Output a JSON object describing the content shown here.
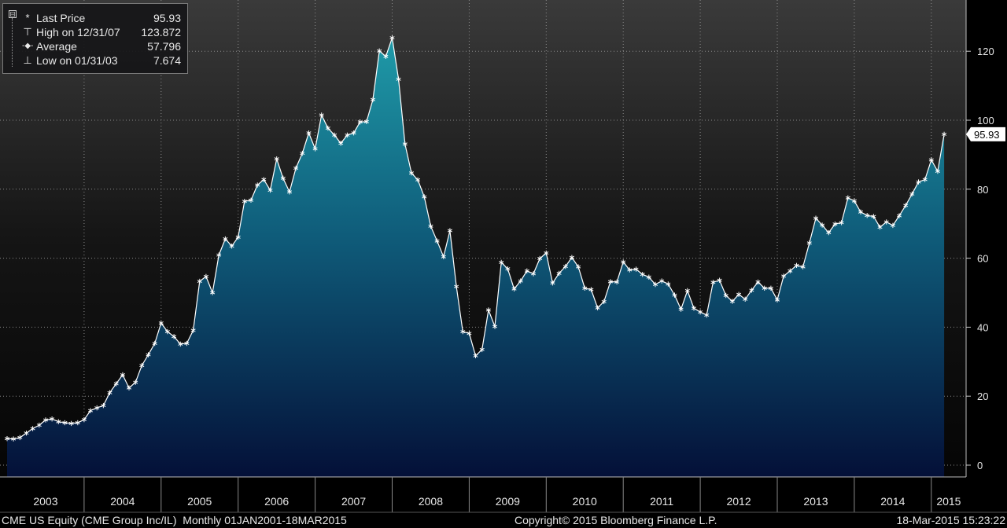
{
  "legend": {
    "collapse_symbol": "⊟",
    "items": [
      {
        "symbol": "*",
        "label": "Last Price",
        "value": "95.93",
        "icon": "asterisk-marker-icon"
      },
      {
        "symbol": "⊤",
        "label": "High on 12/31/07",
        "value": "123.872",
        "icon": "high-marker-icon"
      },
      {
        "symbol": "-◆-",
        "label": "Average",
        "value": "57.796",
        "icon": "average-marker-icon"
      },
      {
        "symbol": "⊥",
        "label": "Low on 01/31/03",
        "value": "7.674",
        "icon": "low-marker-icon"
      }
    ]
  },
  "footer": {
    "security": "CME US Equity (CME Group Inc/IL)  Monthly 01JAN2001-18MAR2015",
    "copyright": "Copyright© 2015 Bloomberg Finance L.P.",
    "timestamp": "18-Mar-2015 15:23:22"
  },
  "colors": {
    "background": "#000000",
    "area_top": "#1f9aa8",
    "area_bottom": "#041038",
    "line": "#ffffff",
    "grid": "#8a8a8a",
    "axis_text": "#e6e6e6",
    "last_price_box": "#ffffff"
  },
  "chart_data": {
    "type": "area",
    "last_price_label": "95.93",
    "xlim": [
      2003.0,
      2015.2
    ],
    "ylim": [
      0,
      130
    ],
    "y_ticks": [
      0,
      20,
      40,
      60,
      80,
      100,
      120
    ],
    "x_tick_labels": [
      "2003",
      "2004",
      "2005",
      "2006",
      "2007",
      "2008",
      "2009",
      "2010",
      "2011",
      "2012",
      "2013",
      "2014",
      "2015"
    ],
    "grid": true,
    "y_axis_side": "right",
    "series": [
      {
        "x": [
          2003.0,
          2003.083,
          2003.167,
          2003.25,
          2003.333,
          2003.417,
          2003.5,
          2003.583,
          2003.667,
          2003.75,
          2003.833,
          2003.917,
          2004.0,
          2004.083,
          2004.167,
          2004.25,
          2004.333,
          2004.417,
          2004.5,
          2004.583,
          2004.667,
          2004.75,
          2004.833,
          2004.917,
          2005.0,
          2005.083,
          2005.167,
          2005.25,
          2005.333,
          2005.417,
          2005.5,
          2005.583,
          2005.667,
          2005.75,
          2005.833,
          2005.917,
          2006.0,
          2006.083,
          2006.167,
          2006.25,
          2006.333,
          2006.417,
          2006.5,
          2006.583,
          2006.667,
          2006.75,
          2006.833,
          2006.917,
          2007.0,
          2007.083,
          2007.167,
          2007.25,
          2007.333,
          2007.417,
          2007.5,
          2007.583,
          2007.667,
          2007.75,
          2007.833,
          2007.917,
          2008.0,
          2008.083,
          2008.167,
          2008.25,
          2008.333,
          2008.417,
          2008.5,
          2008.583,
          2008.667,
          2008.75,
          2008.833,
          2008.917,
          2009.0,
          2009.083,
          2009.167,
          2009.25,
          2009.333,
          2009.417,
          2009.5,
          2009.583,
          2009.667,
          2009.75,
          2009.833,
          2009.917,
          2010.0,
          2010.083,
          2010.167,
          2010.25,
          2010.333,
          2010.417,
          2010.5,
          2010.583,
          2010.667,
          2010.75,
          2010.833,
          2010.917,
          2011.0,
          2011.083,
          2011.167,
          2011.25,
          2011.333,
          2011.417,
          2011.5,
          2011.583,
          2011.667,
          2011.75,
          2011.833,
          2011.917,
          2012.0,
          2012.083,
          2012.167,
          2012.25,
          2012.333,
          2012.417,
          2012.5,
          2012.583,
          2012.667,
          2012.75,
          2012.833,
          2012.917,
          2013.0,
          2013.083,
          2013.167,
          2013.25,
          2013.333,
          2013.417,
          2013.5,
          2013.583,
          2013.667,
          2013.75,
          2013.833,
          2013.917,
          2014.0,
          2014.083,
          2014.167,
          2014.25,
          2014.333,
          2014.417,
          2014.5,
          2014.583,
          2014.667,
          2014.75,
          2014.833,
          2014.917,
          2015.0,
          2015.083,
          2015.167
        ],
        "values": [
          7.7,
          7.6,
          8.0,
          9.3,
          10.6,
          11.6,
          13.1,
          13.4,
          12.6,
          12.3,
          12.1,
          12.3,
          13.2,
          15.8,
          16.6,
          17.3,
          21.0,
          23.6,
          26.2,
          22.4,
          24.0,
          28.9,
          32.0,
          35.3,
          41.2,
          38.7,
          37.3,
          35.1,
          35.3,
          39.1,
          53.3,
          54.7,
          50.0,
          60.9,
          65.6,
          63.5,
          66.1,
          76.5,
          76.8,
          81.2,
          82.8,
          79.7,
          88.8,
          83.2,
          79.2,
          86.1,
          90.4,
          96.3,
          91.7,
          101.5,
          97.7,
          95.7,
          93.3,
          95.7,
          96.3,
          99.5,
          99.6,
          106.0,
          120.1,
          118.5,
          123.9,
          111.9,
          93.1,
          84.7,
          82.7,
          77.8,
          69.3,
          65.0,
          60.4,
          68.0,
          51.8,
          38.7,
          38.2,
          31.7,
          33.5,
          45.0,
          40.2,
          58.8,
          56.9,
          51.1,
          53.4,
          56.3,
          55.5,
          59.9,
          61.5,
          52.8,
          55.6,
          57.6,
          60.2,
          57.5,
          51.3,
          50.9,
          45.6,
          47.4,
          53.2,
          53.1,
          58.9,
          56.6,
          56.8,
          55.3,
          54.5,
          52.4,
          53.4,
          52.5,
          49.3,
          45.2,
          50.6,
          45.5,
          44.4,
          43.5,
          53.0,
          53.6,
          49.2,
          47.5,
          49.5,
          48.1,
          50.7,
          53.1,
          51.3,
          51.3,
          47.9,
          54.8,
          56.3,
          57.9,
          57.5,
          64.4,
          71.6,
          69.6,
          67.4,
          69.9,
          70.3,
          77.5,
          76.6,
          73.4,
          72.4,
          72.1,
          69.0,
          70.5,
          69.5,
          72.3,
          75.3,
          78.6,
          82.1,
          82.8,
          88.5,
          85.2,
          95.93
        ]
      }
    ]
  }
}
